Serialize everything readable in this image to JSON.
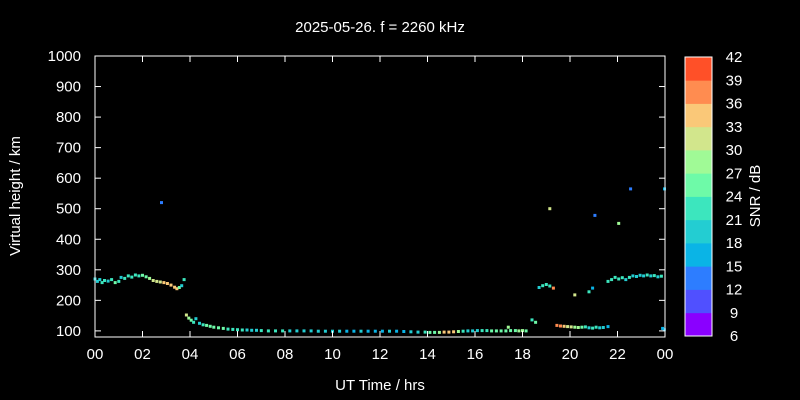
{
  "chart_data": {
    "type": "scatter",
    "title": "2025-05-26. f = 2260 kHz",
    "xlabel": "UT Time / hrs",
    "ylabel": "Virtual height / km",
    "colorbar_label": "SNR / dB",
    "xlim": [
      0,
      24
    ],
    "ylim": [
      80,
      1000
    ],
    "x_ticks": [
      "00",
      "02",
      "04",
      "06",
      "08",
      "10",
      "12",
      "14",
      "16",
      "18",
      "20",
      "22",
      "00"
    ],
    "y_ticks": [
      "100",
      "200",
      "300",
      "400",
      "500",
      "600",
      "700",
      "800",
      "900",
      "1000"
    ],
    "colorbar_ticks": [
      "6",
      "9",
      "12",
      "15",
      "18",
      "21",
      "24",
      "27",
      "30",
      "33",
      "36",
      "39",
      "42"
    ],
    "colorbar_colors": [
      "#8a00ff",
      "#5050ff",
      "#2d7dff",
      "#0ab4e6",
      "#23cdd2",
      "#3ce6be",
      "#6efaa8",
      "#a0fa96",
      "#d2e68c",
      "#fac878",
      "#ff8c50",
      "#ff5028"
    ],
    "grid": false,
    "series": [
      {
        "points": [
          [
            0.0,
            270,
            18
          ],
          [
            0.1,
            262,
            20
          ],
          [
            0.2,
            268,
            20
          ],
          [
            0.3,
            258,
            21
          ],
          [
            0.4,
            265,
            21
          ],
          [
            0.55,
            263,
            20
          ],
          [
            0.7,
            268,
            22
          ],
          [
            0.85,
            258,
            24
          ],
          [
            1.0,
            262,
            21
          ],
          [
            1.1,
            275,
            20
          ],
          [
            1.25,
            272,
            21
          ],
          [
            1.4,
            280,
            22
          ],
          [
            1.55,
            276,
            22
          ],
          [
            1.7,
            283,
            23
          ],
          [
            1.85,
            280,
            23
          ],
          [
            2.0,
            282,
            24
          ],
          [
            2.15,
            277,
            26
          ],
          [
            2.3,
            272,
            28
          ],
          [
            2.45,
            265,
            30
          ],
          [
            2.6,
            262,
            31
          ],
          [
            2.75,
            260,
            32
          ],
          [
            2.9,
            258,
            33
          ],
          [
            3.05,
            255,
            33
          ],
          [
            3.2,
            250,
            34
          ],
          [
            3.35,
            243,
            35
          ],
          [
            3.45,
            238,
            33
          ],
          [
            3.55,
            242,
            24
          ],
          [
            3.65,
            248,
            19
          ],
          [
            3.75,
            268,
            21
          ],
          [
            2.8,
            520,
            14
          ],
          [
            3.85,
            152,
            31
          ],
          [
            3.95,
            142,
            27
          ],
          [
            4.05,
            135,
            24
          ],
          [
            4.15,
            128,
            21
          ],
          [
            4.25,
            140,
            19
          ],
          [
            4.4,
            125,
            20
          ],
          [
            4.55,
            120,
            22
          ],
          [
            4.7,
            118,
            24
          ],
          [
            4.85,
            115,
            24
          ],
          [
            5.0,
            112,
            25
          ],
          [
            5.2,
            110,
            24
          ],
          [
            5.4,
            108,
            24
          ],
          [
            5.6,
            106,
            23
          ],
          [
            5.8,
            105,
            22
          ],
          [
            6.0,
            104,
            22
          ],
          [
            6.2,
            103,
            21
          ],
          [
            6.4,
            103,
            20
          ],
          [
            6.6,
            102,
            20
          ],
          [
            6.8,
            102,
            20
          ],
          [
            7.0,
            101,
            21
          ],
          [
            7.3,
            100,
            21
          ],
          [
            7.6,
            100,
            21
          ],
          [
            7.9,
            100,
            21
          ],
          [
            8.2,
            100,
            20
          ],
          [
            8.5,
            100,
            20
          ],
          [
            8.8,
            100,
            20
          ],
          [
            9.1,
            100,
            19
          ],
          [
            9.4,
            99,
            20
          ],
          [
            9.7,
            99,
            19
          ],
          [
            10.0,
            99,
            20
          ],
          [
            10.3,
            99,
            19
          ],
          [
            10.6,
            99,
            17
          ],
          [
            10.9,
            99,
            17
          ],
          [
            11.2,
            99,
            18
          ],
          [
            11.5,
            99,
            17
          ],
          [
            11.8,
            99,
            16
          ],
          [
            12.1,
            99,
            17
          ],
          [
            12.4,
            99,
            18
          ],
          [
            12.7,
            99,
            15
          ],
          [
            13.0,
            98,
            16
          ],
          [
            13.3,
            97,
            18
          ],
          [
            13.6,
            96,
            20
          ],
          [
            13.9,
            96,
            22
          ],
          [
            14.1,
            95,
            24
          ],
          [
            14.3,
            95,
            26
          ],
          [
            14.5,
            95,
            28
          ],
          [
            14.7,
            96,
            33
          ],
          [
            14.9,
            96,
            34
          ],
          [
            15.1,
            97,
            34
          ],
          [
            15.3,
            98,
            27
          ],
          [
            15.5,
            99,
            22
          ],
          [
            15.7,
            100,
            20
          ],
          [
            15.9,
            100,
            19
          ],
          [
            16.1,
            101,
            20
          ],
          [
            16.3,
            101,
            21
          ],
          [
            16.5,
            101,
            22
          ],
          [
            16.7,
            100,
            24
          ],
          [
            16.9,
            100,
            25
          ],
          [
            17.1,
            100,
            26
          ],
          [
            17.3,
            100,
            25
          ],
          [
            17.5,
            101,
            24
          ],
          [
            17.7,
            101,
            26
          ],
          [
            17.85,
            100,
            28
          ],
          [
            18.0,
            101,
            27
          ],
          [
            18.15,
            100,
            26
          ],
          [
            17.4,
            112,
            27
          ],
          [
            18.4,
            136,
            22
          ],
          [
            18.55,
            128,
            24
          ],
          [
            18.7,
            242,
            20
          ],
          [
            18.85,
            248,
            21
          ],
          [
            19.0,
            252,
            22
          ],
          [
            19.15,
            247,
            23
          ],
          [
            19.3,
            240,
            36
          ],
          [
            19.15,
            500,
            32
          ],
          [
            19.45,
            118,
            37
          ],
          [
            19.6,
            116,
            36
          ],
          [
            19.75,
            115,
            34
          ],
          [
            19.9,
            114,
            32
          ],
          [
            20.05,
            113,
            30
          ],
          [
            20.2,
            112,
            28
          ],
          [
            20.35,
            111,
            27
          ],
          [
            20.5,
            112,
            24
          ],
          [
            20.65,
            113,
            22
          ],
          [
            20.8,
            110,
            20
          ],
          [
            20.95,
            109,
            22
          ],
          [
            21.1,
            112,
            21
          ],
          [
            21.25,
            110,
            19
          ],
          [
            21.4,
            111,
            18
          ],
          [
            21.6,
            114,
            16
          ],
          [
            20.2,
            218,
            30
          ],
          [
            20.8,
            228,
            22
          ],
          [
            20.95,
            240,
            17
          ],
          [
            21.05,
            478,
            14
          ],
          [
            22.05,
            452,
            27
          ],
          [
            22.55,
            565,
            14
          ],
          [
            21.6,
            262,
            21
          ],
          [
            21.75,
            268,
            22
          ],
          [
            21.9,
            275,
            23
          ],
          [
            22.05,
            270,
            22
          ],
          [
            22.2,
            274,
            21
          ],
          [
            22.35,
            268,
            20
          ],
          [
            22.5,
            275,
            21
          ],
          [
            22.65,
            280,
            20
          ],
          [
            22.8,
            278,
            20
          ],
          [
            22.95,
            282,
            19
          ],
          [
            23.1,
            280,
            20
          ],
          [
            23.25,
            283,
            21
          ],
          [
            23.4,
            280,
            20
          ],
          [
            23.55,
            281,
            21
          ],
          [
            23.7,
            277,
            20
          ],
          [
            23.85,
            279,
            21
          ],
          [
            23.9,
            108,
            16
          ],
          [
            23.97,
            104,
            15
          ],
          [
            23.98,
            565,
            16
          ]
        ]
      }
    ]
  }
}
